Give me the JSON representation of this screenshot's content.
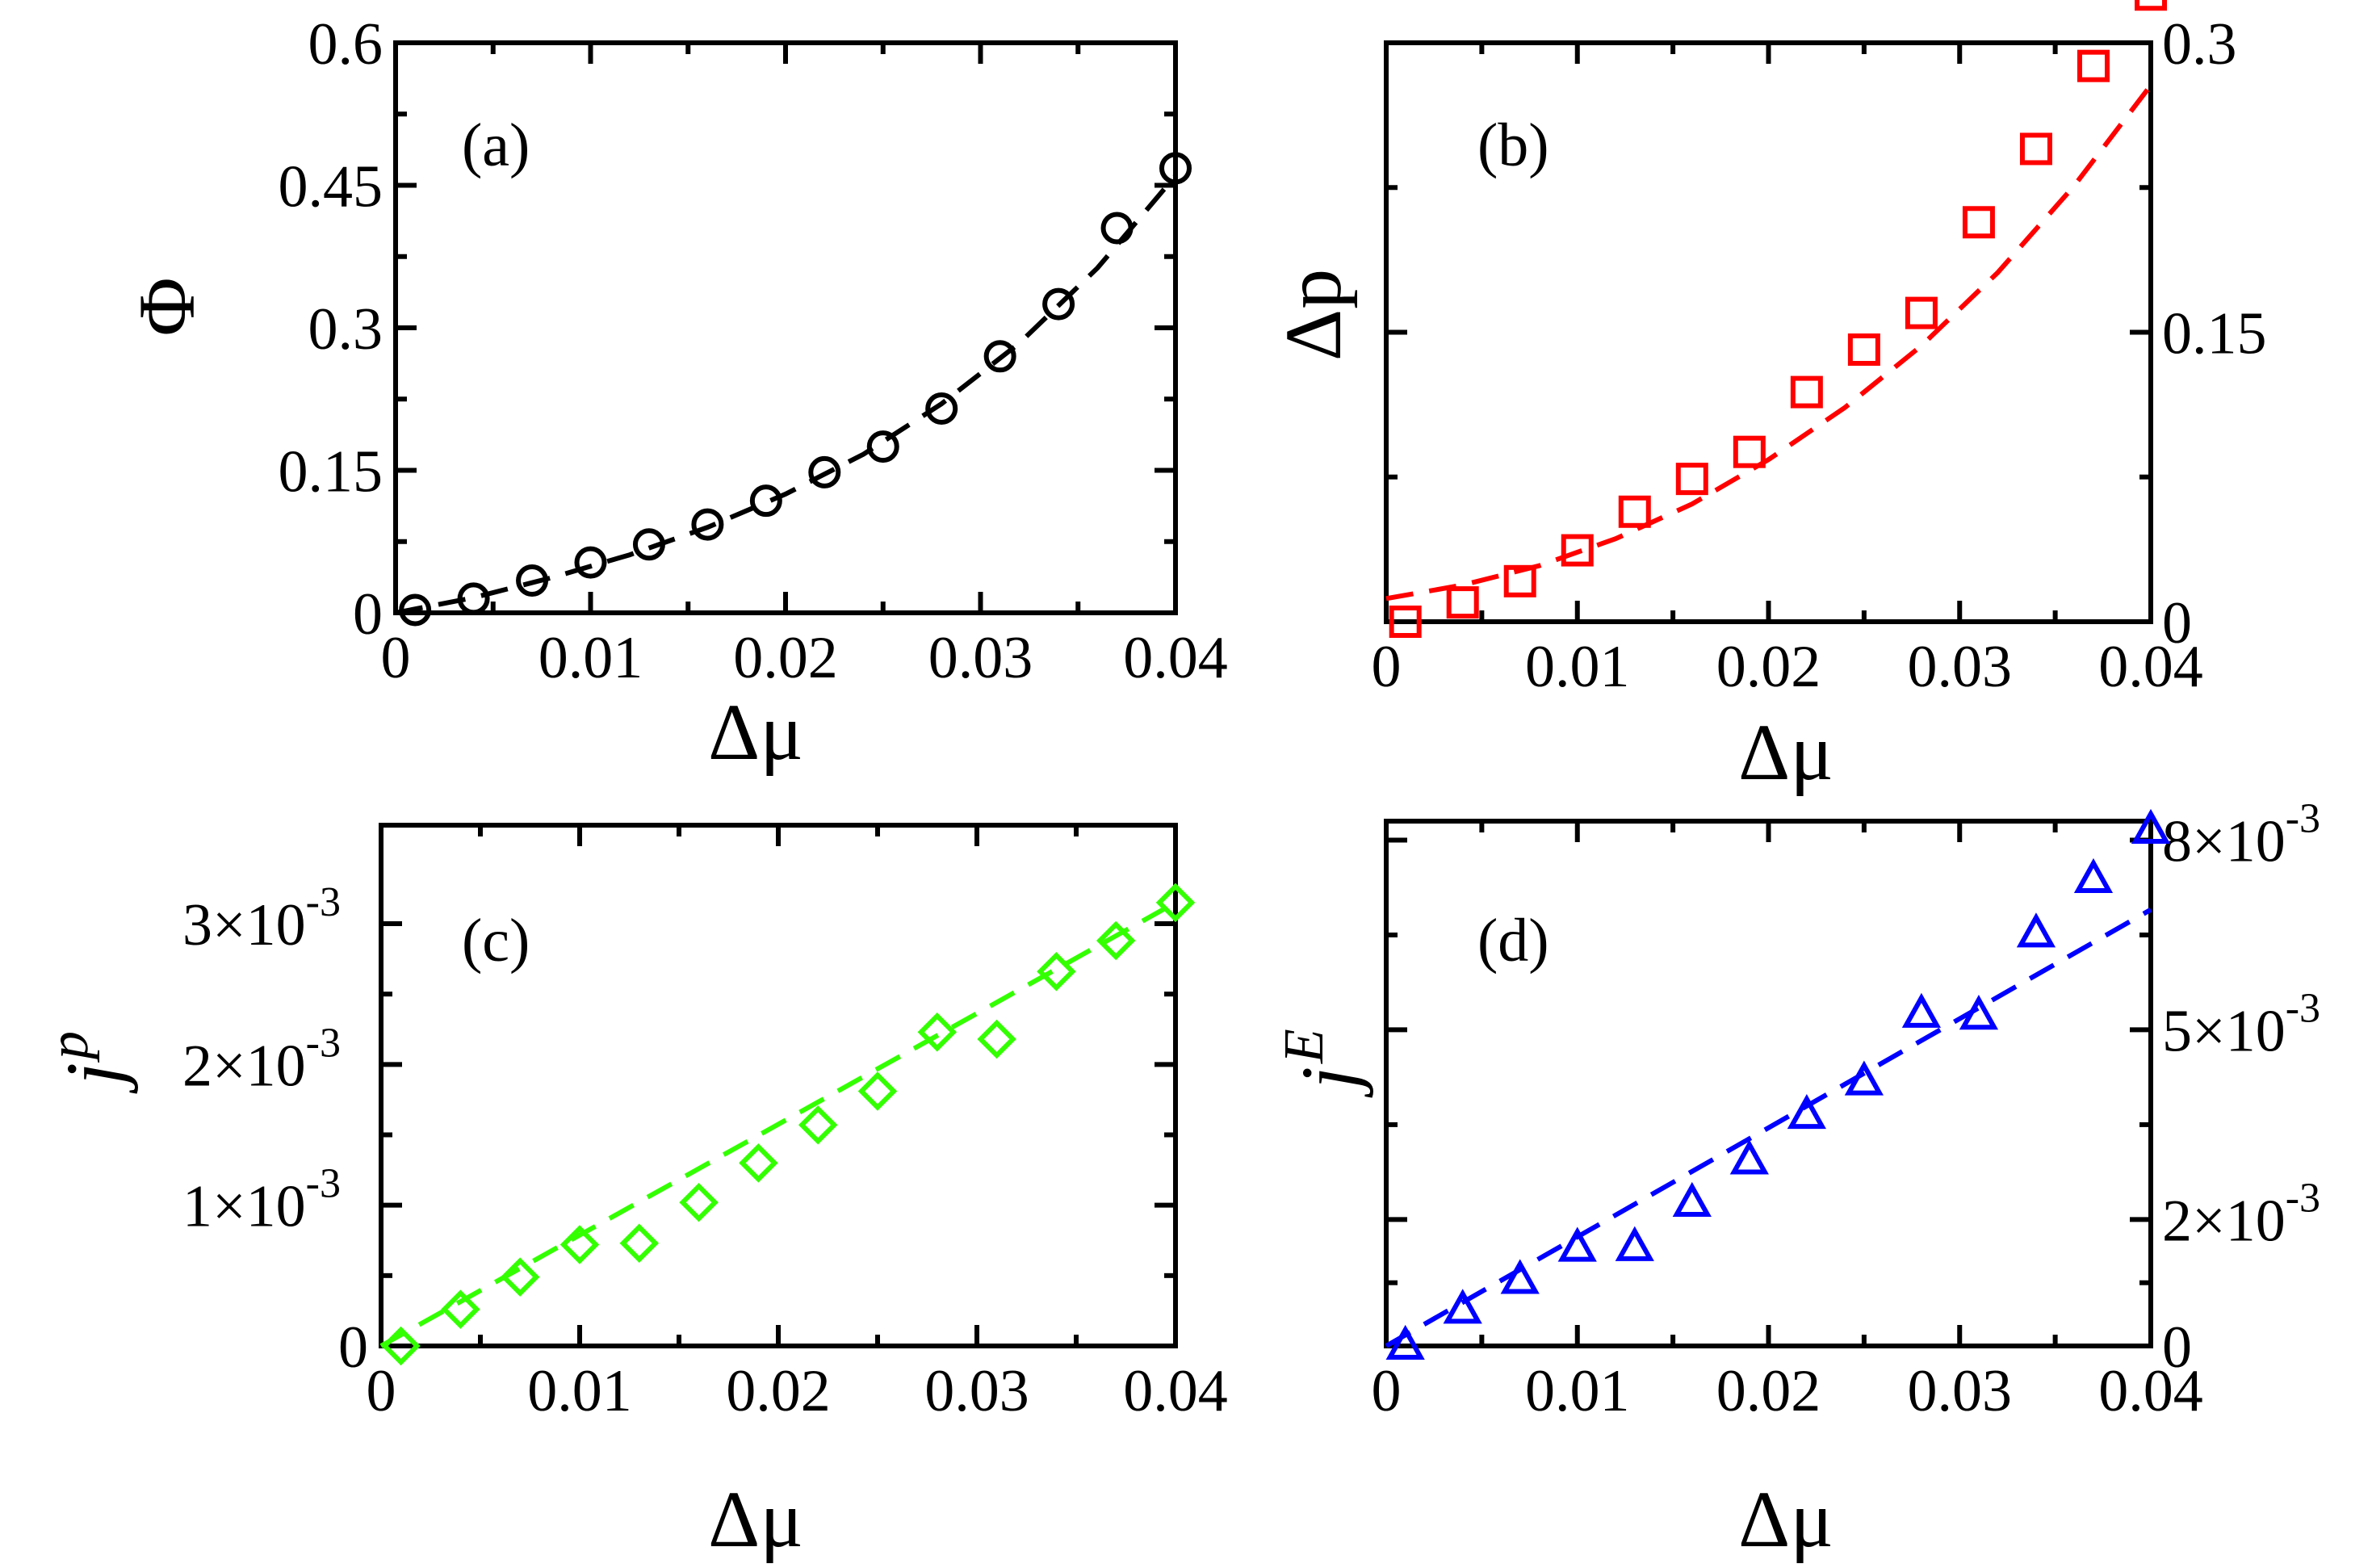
{
  "figure": {
    "panels": [
      {
        "id": "a",
        "panel_label": "(a)",
        "x_label": "Δμ",
        "y_label": "Φ",
        "y_side": "left",
        "marker": "circle",
        "color": "#000000",
        "x_ticks": [
          "0",
          "0.01",
          "0.02",
          "0.03",
          "0.04"
        ],
        "y_ticks": [
          "0",
          "0.15",
          "0.3",
          "0.45",
          "0.6"
        ]
      },
      {
        "id": "b",
        "panel_label": "(b)",
        "x_label": "Δμ",
        "y_label": "Δp",
        "y_side": "right",
        "marker": "square",
        "color": "#ff0000",
        "x_ticks": [
          "0",
          "0.01",
          "0.02",
          "0.03",
          "0.04"
        ],
        "y_ticks": [
          "0",
          "0.15",
          "0.3"
        ]
      },
      {
        "id": "c",
        "panel_label": "(c)",
        "x_label": "Δμ",
        "y_label": "j",
        "y_label_sup": "p",
        "y_side": "left",
        "marker": "diamond",
        "color": "#33ff00",
        "x_ticks": [
          "0",
          "0.01",
          "0.02",
          "0.03",
          "0.04"
        ],
        "y_ticks": [
          "0",
          "1×10",
          "2×10",
          "3×10"
        ],
        "y_tick_exponent": "-3"
      },
      {
        "id": "d",
        "panel_label": "(d)",
        "x_label": "Δμ",
        "y_label": "j",
        "y_label_sup": "E",
        "y_side": "right",
        "marker": "triangle",
        "color": "#0000ff",
        "x_ticks": [
          "0",
          "0.01",
          "0.02",
          "0.03",
          "0.04"
        ],
        "y_ticks": [
          "0",
          "2×10",
          "5×10",
          "8×10"
        ],
        "y_tick_exponent": "-3"
      }
    ]
  },
  "chart_data": [
    {
      "type": "scatter",
      "panel": "a",
      "title": "",
      "xlabel": "Δμ",
      "ylabel": "Φ",
      "xlim": [
        0,
        0.04
      ],
      "ylim": [
        0,
        0.6
      ],
      "x_ticks": [
        0,
        0.01,
        0.02,
        0.03,
        0.04
      ],
      "y_ticks": [
        0,
        0.15,
        0.3,
        0.45,
        0.6
      ],
      "series": [
        {
          "name": "data",
          "marker": "circle",
          "x": [
            0.001,
            0.004,
            0.007,
            0.01,
            0.013,
            0.016,
            0.019,
            0.022,
            0.025,
            0.028,
            0.031,
            0.034,
            0.037,
            0.04
          ],
          "y": [
            0.003,
            0.015,
            0.034,
            0.053,
            0.072,
            0.093,
            0.118,
            0.148,
            0.175,
            0.215,
            0.27,
            0.325,
            0.405,
            0.468
          ]
        },
        {
          "name": "fit",
          "style": "dashed",
          "x": [
            0.0,
            0.004,
            0.008,
            0.012,
            0.016,
            0.02,
            0.024,
            0.028,
            0.032,
            0.036,
            0.04
          ],
          "y": [
            0.0,
            0.016,
            0.037,
            0.061,
            0.09,
            0.125,
            0.167,
            0.22,
            0.284,
            0.363,
            0.46
          ]
        }
      ]
    },
    {
      "type": "scatter",
      "panel": "b",
      "title": "",
      "xlabel": "Δμ",
      "ylabel": "Δp",
      "xlim": [
        0,
        0.04
      ],
      "ylim": [
        0,
        0.3
      ],
      "x_ticks": [
        0,
        0.01,
        0.02,
        0.03,
        0.04
      ],
      "y_ticks": [
        0,
        0.15,
        0.3
      ],
      "series": [
        {
          "name": "data",
          "marker": "square",
          "x": [
            0.001,
            0.004,
            0.007,
            0.01,
            0.013,
            0.016,
            0.019,
            0.022,
            0.025,
            0.028,
            0.031,
            0.034,
            0.037,
            0.04
          ],
          "y": [
            0.0,
            0.01,
            0.021,
            0.037,
            0.057,
            0.074,
            0.088,
            0.119,
            0.141,
            0.16,
            0.207,
            0.245,
            0.288,
            0.325
          ]
        },
        {
          "name": "fit",
          "style": "dashed",
          "x": [
            0.0,
            0.004,
            0.008,
            0.012,
            0.016,
            0.02,
            0.024,
            0.028,
            0.032,
            0.036,
            0.04
          ],
          "y": [
            0.012,
            0.019,
            0.029,
            0.043,
            0.061,
            0.084,
            0.111,
            0.143,
            0.181,
            0.226,
            0.278
          ]
        }
      ]
    },
    {
      "type": "scatter",
      "panel": "c",
      "title": "",
      "xlabel": "Δμ",
      "ylabel": "j^p",
      "xlim": [
        0,
        0.04
      ],
      "ylim": [
        0,
        0.0037
      ],
      "x_ticks": [
        0,
        0.01,
        0.02,
        0.03,
        0.04
      ],
      "y_ticks": [
        0,
        0.001,
        0.002,
        0.003
      ],
      "series": [
        {
          "name": "data",
          "marker": "diamond",
          "x": [
            0.001,
            0.004,
            0.007,
            0.01,
            0.013,
            0.016,
            0.019,
            0.022,
            0.025,
            0.028,
            0.031,
            0.034,
            0.037,
            0.04
          ],
          "y": [
            0.0,
            0.00026,
            0.00049,
            0.00072,
            0.00073,
            0.00102,
            0.0013,
            0.00157,
            0.00181,
            0.00223,
            0.00218,
            0.00266,
            0.00288,
            0.00315
          ]
        },
        {
          "name": "fit",
          "style": "dashed",
          "x": [
            0.0,
            0.04
          ],
          "y": [
            0.0,
            0.00315
          ]
        }
      ]
    },
    {
      "type": "scatter",
      "panel": "d",
      "title": "",
      "xlabel": "Δμ",
      "ylabel": "j^E",
      "xlim": [
        0,
        0.04
      ],
      "ylim": [
        0,
        0.0083
      ],
      "x_ticks": [
        0,
        0.01,
        0.02,
        0.03,
        0.04
      ],
      "y_ticks": [
        0,
        0.002,
        0.005,
        0.008
      ],
      "series": [
        {
          "name": "data",
          "marker": "triangle",
          "x": [
            0.001,
            0.004,
            0.007,
            0.01,
            0.013,
            0.016,
            0.019,
            0.022,
            0.025,
            0.028,
            0.031,
            0.034,
            0.037,
            0.04
          ],
          "y": [
            0.0,
            0.00057,
            0.00104,
            0.00155,
            0.00156,
            0.00226,
            0.00293,
            0.00365,
            0.00418,
            0.00525,
            0.00522,
            0.00652,
            0.00738,
            0.00816
          ]
        },
        {
          "name": "fit",
          "style": "dashed",
          "x": [
            0.0,
            0.04
          ],
          "y": [
            0.0,
            0.0069
          ]
        }
      ]
    }
  ]
}
